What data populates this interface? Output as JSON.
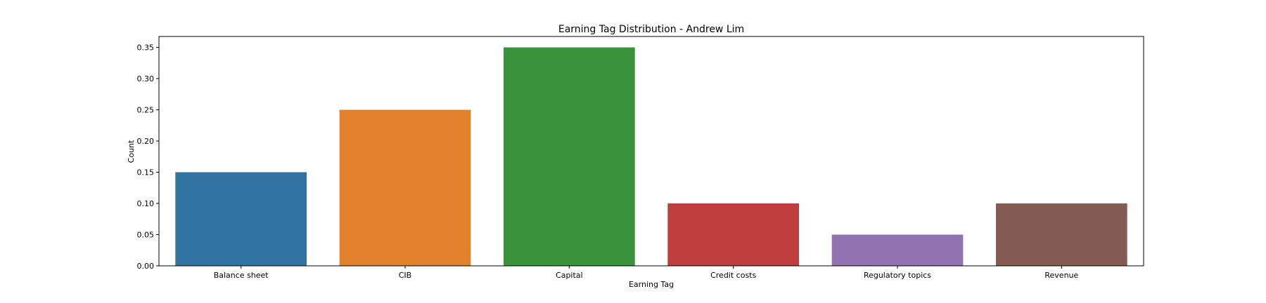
{
  "chart_data": {
    "type": "bar",
    "title": "Earning Tag Distribution - Andrew Lim",
    "xlabel": "Earning Tag",
    "ylabel": "Count",
    "categories": [
      "Balance sheet",
      "CIB",
      "Capital",
      "Credit costs",
      "Regulatory topics",
      "Revenue"
    ],
    "values": [
      0.15,
      0.25,
      0.35,
      0.1,
      0.05,
      0.1
    ],
    "colors": [
      "#3274a1",
      "#e1812c",
      "#3a923a",
      "#c03d3e",
      "#9372b2",
      "#845b53"
    ],
    "ylim": [
      0,
      0.3675
    ],
    "yticks": [
      0.0,
      0.05,
      0.1,
      0.15,
      0.2,
      0.25,
      0.3,
      0.35
    ],
    "ytick_labels": [
      "0.00",
      "0.05",
      "0.10",
      "0.15",
      "0.20",
      "0.25",
      "0.30",
      "0.35"
    ],
    "grid": false,
    "legend": "none"
  }
}
